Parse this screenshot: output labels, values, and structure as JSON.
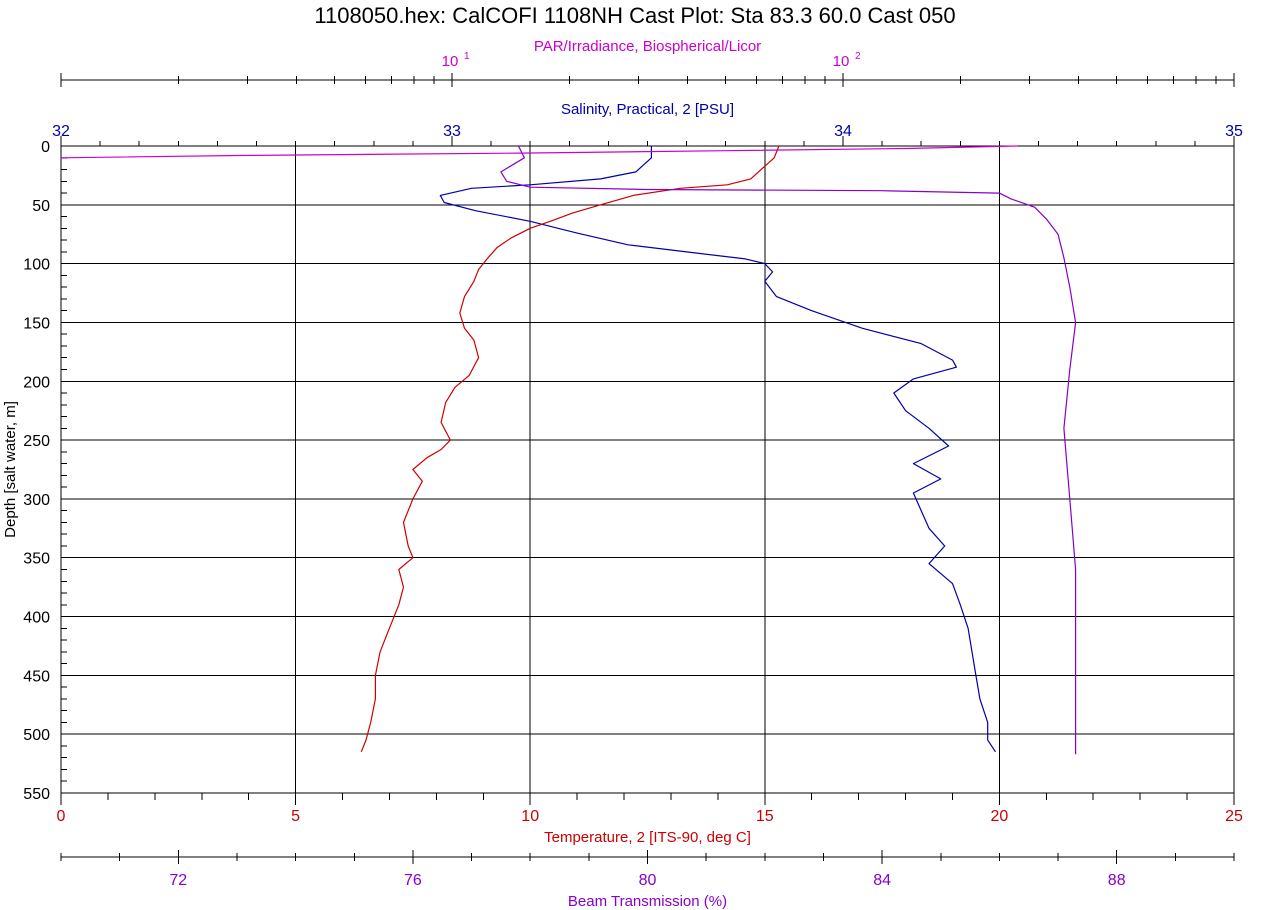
{
  "title": "1108050.hex: CalCOFI 1108NH Cast Plot: Sta 83.3  60.0  Cast 050",
  "colors": {
    "par": "#cc00cc",
    "salinity": "#0000aa",
    "temperature": "#cc0000",
    "beam": "#8800cc",
    "axis": "#000000",
    "grid": "#000000"
  },
  "chart_data": {
    "type": "line",
    "title": "1108050.hex: CalCOFI 1108NH Cast Plot: Sta 83.3  60.0  Cast 050",
    "y_axis": {
      "label": "Depth [salt water, m]",
      "range": [
        0,
        550
      ],
      "inverted": true,
      "ticks": [
        0,
        50,
        100,
        150,
        200,
        250,
        300,
        350,
        400,
        450,
        500,
        550
      ]
    },
    "x_axes": [
      {
        "id": "par",
        "label": "PAR/Irradiance, Biospherical/Licor",
        "scale": "log",
        "range": [
          1,
          1000
        ],
        "ticks": [
          {
            "value": 10,
            "label": "10",
            "exp": "1"
          },
          {
            "value": 100,
            "label": "10",
            "exp": "2"
          }
        ]
      },
      {
        "id": "salinity",
        "label": "Salinity, Practical, 2 [PSU]",
        "scale": "linear",
        "range": [
          32,
          35
        ],
        "ticks": [
          32,
          33,
          34,
          35
        ]
      },
      {
        "id": "temperature",
        "label": "Temperature, 2 [ITS-90, deg C]",
        "scale": "linear",
        "range": [
          0,
          25
        ],
        "ticks": [
          0,
          5,
          10,
          15,
          20,
          25
        ]
      },
      {
        "id": "beam",
        "label": "Beam Transmission (%)",
        "scale": "linear",
        "range": [
          70,
          90
        ],
        "ticks": [
          72,
          76,
          80,
          84,
          88
        ]
      }
    ],
    "grid": true,
    "series": [
      {
        "name": "Salinity, Practical, 2 [PSU]",
        "axis": "salinity",
        "points": [
          [
            33.51,
            0
          ],
          [
            33.51,
            10
          ],
          [
            33.47,
            22
          ],
          [
            33.38,
            28
          ],
          [
            33.2,
            33
          ],
          [
            33.05,
            36
          ],
          [
            32.97,
            42
          ],
          [
            32.98,
            48
          ],
          [
            33.06,
            55
          ],
          [
            33.2,
            64
          ],
          [
            33.32,
            74
          ],
          [
            33.45,
            84
          ],
          [
            33.6,
            90
          ],
          [
            33.75,
            96
          ],
          [
            33.8,
            100
          ],
          [
            33.82,
            107
          ],
          [
            33.8,
            115
          ],
          [
            33.83,
            128
          ],
          [
            33.92,
            140
          ],
          [
            34.05,
            155
          ],
          [
            34.2,
            168
          ],
          [
            34.28,
            182
          ],
          [
            34.29,
            188
          ],
          [
            34.18,
            198
          ],
          [
            34.13,
            210
          ],
          [
            34.16,
            225
          ],
          [
            34.22,
            240
          ],
          [
            34.27,
            255
          ],
          [
            34.18,
            270
          ],
          [
            34.25,
            283
          ],
          [
            34.18,
            295
          ],
          [
            34.2,
            310
          ],
          [
            34.22,
            325
          ],
          [
            34.26,
            340
          ],
          [
            34.22,
            355
          ],
          [
            34.28,
            372
          ],
          [
            34.3,
            390
          ],
          [
            34.32,
            410
          ],
          [
            34.33,
            430
          ],
          [
            34.34,
            450
          ],
          [
            34.35,
            470
          ],
          [
            34.37,
            490
          ],
          [
            34.37,
            505
          ],
          [
            34.39,
            515
          ]
        ]
      },
      {
        "name": "Temperature, 2 [ITS-90, deg C]",
        "axis": "temperature",
        "points": [
          [
            15.3,
            0
          ],
          [
            15.2,
            10
          ],
          [
            14.7,
            28
          ],
          [
            14.2,
            33
          ],
          [
            13.2,
            36
          ],
          [
            12.2,
            42
          ],
          [
            11.5,
            50
          ],
          [
            10.9,
            57
          ],
          [
            10.5,
            63
          ],
          [
            10.0,
            70
          ],
          [
            9.6,
            78
          ],
          [
            9.3,
            86
          ],
          [
            9.1,
            95
          ],
          [
            8.9,
            105
          ],
          [
            8.8,
            115
          ],
          [
            8.6,
            128
          ],
          [
            8.5,
            142
          ],
          [
            8.6,
            155
          ],
          [
            8.8,
            165
          ],
          [
            8.9,
            180
          ],
          [
            8.7,
            195
          ],
          [
            8.4,
            205
          ],
          [
            8.2,
            218
          ],
          [
            8.1,
            235
          ],
          [
            8.3,
            250
          ],
          [
            8.1,
            258
          ],
          [
            7.8,
            265
          ],
          [
            7.5,
            275
          ],
          [
            7.7,
            285
          ],
          [
            7.5,
            300
          ],
          [
            7.3,
            320
          ],
          [
            7.4,
            340
          ],
          [
            7.5,
            350
          ],
          [
            7.2,
            360
          ],
          [
            7.3,
            375
          ],
          [
            7.2,
            390
          ],
          [
            7.0,
            410
          ],
          [
            6.8,
            430
          ],
          [
            6.7,
            450
          ],
          [
            6.7,
            470
          ],
          [
            6.6,
            490
          ],
          [
            6.5,
            505
          ],
          [
            6.4,
            515
          ]
        ]
      },
      {
        "name": "Beam Transmission (%)",
        "axis": "beam",
        "points": [
          [
            77.8,
            0
          ],
          [
            77.9,
            10
          ],
          [
            77.5,
            22
          ],
          [
            77.6,
            30
          ],
          [
            78.0,
            35
          ],
          [
            80.0,
            37
          ],
          [
            84.0,
            38
          ],
          [
            86.0,
            40
          ],
          [
            86.2,
            45
          ],
          [
            86.6,
            52
          ],
          [
            86.8,
            62
          ],
          [
            87.0,
            75
          ],
          [
            87.1,
            95
          ],
          [
            87.2,
            120
          ],
          [
            87.3,
            150
          ],
          [
            87.2,
            190
          ],
          [
            87.1,
            240
          ],
          [
            87.2,
            300
          ],
          [
            87.3,
            360
          ],
          [
            87.3,
            420
          ],
          [
            87.3,
            480
          ],
          [
            87.3,
            517
          ]
        ]
      },
      {
        "name": "PAR/Irradiance, Biospherical/Licor",
        "axis": "par",
        "points": [
          [
            280,
            0
          ],
          [
            150,
            2
          ],
          [
            50,
            4
          ],
          [
            15,
            6
          ],
          [
            3,
            8
          ],
          [
            1,
            10
          ]
        ]
      }
    ]
  }
}
